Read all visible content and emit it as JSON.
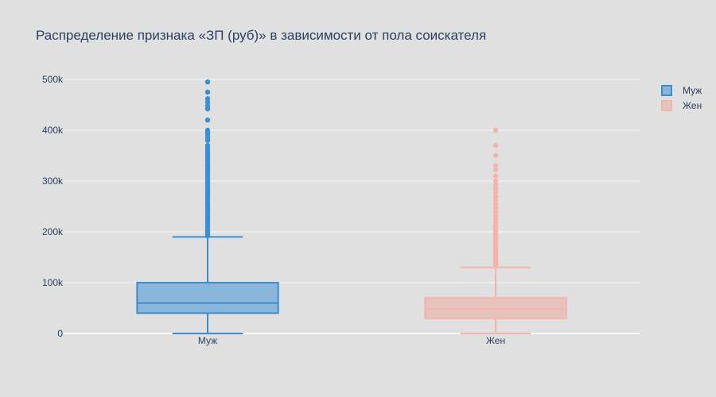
{
  "chart_data": {
    "type": "box",
    "title": "Распределение признака «ЗП (руб)» в зависимости от пола соискателя",
    "xlabel": "",
    "ylabel": "",
    "categories": [
      "Муж",
      "Жен"
    ],
    "ylim": [
      0,
      500000
    ],
    "y_ticks": [
      0,
      100000,
      200000,
      300000,
      400000,
      500000
    ],
    "y_tick_labels": [
      "0",
      "100k",
      "200k",
      "300k",
      "400k",
      "500k"
    ],
    "grid": true,
    "legend_position": "top-right",
    "series": [
      {
        "name": "Муж",
        "color": "#3a8fd3",
        "fill": "#8ab6db",
        "min": 0,
        "q1": 40000,
        "median": 60000,
        "q3": 100000,
        "upper_fence": 190000,
        "outliers": [
          495000,
          475000,
          462000,
          455000,
          448000,
          442000,
          420000,
          400000,
          395000,
          390000,
          385000,
          380000,
          370000,
          365000,
          360000,
          355000,
          350000,
          345000,
          340000,
          335000,
          330000,
          325000,
          320000,
          315000,
          310000,
          305000,
          300000,
          295000,
          290000,
          285000,
          280000,
          275000,
          270000,
          265000,
          260000,
          255000,
          250000,
          245000,
          240000,
          235000,
          230000,
          225000,
          220000,
          215000,
          210000,
          205000,
          200000,
          195000,
          192000
        ]
      },
      {
        "name": "Жен",
        "color": "#f4b4ab",
        "fill": "#e6c3be",
        "min": 0,
        "q1": 30000,
        "median": 48000,
        "q3": 70000,
        "upper_fence": 130000,
        "outliers": [
          400000,
          370000,
          350000,
          330000,
          322000,
          310000,
          300000,
          292000,
          285000,
          278000,
          270000,
          262000,
          255000,
          248000,
          240000,
          232000,
          225000,
          218000,
          212000,
          206000,
          200000,
          194000,
          188000,
          182000,
          176000,
          170000,
          165000,
          160000,
          155000,
          150000,
          146000,
          142000,
          138000,
          135000
        ]
      }
    ]
  }
}
